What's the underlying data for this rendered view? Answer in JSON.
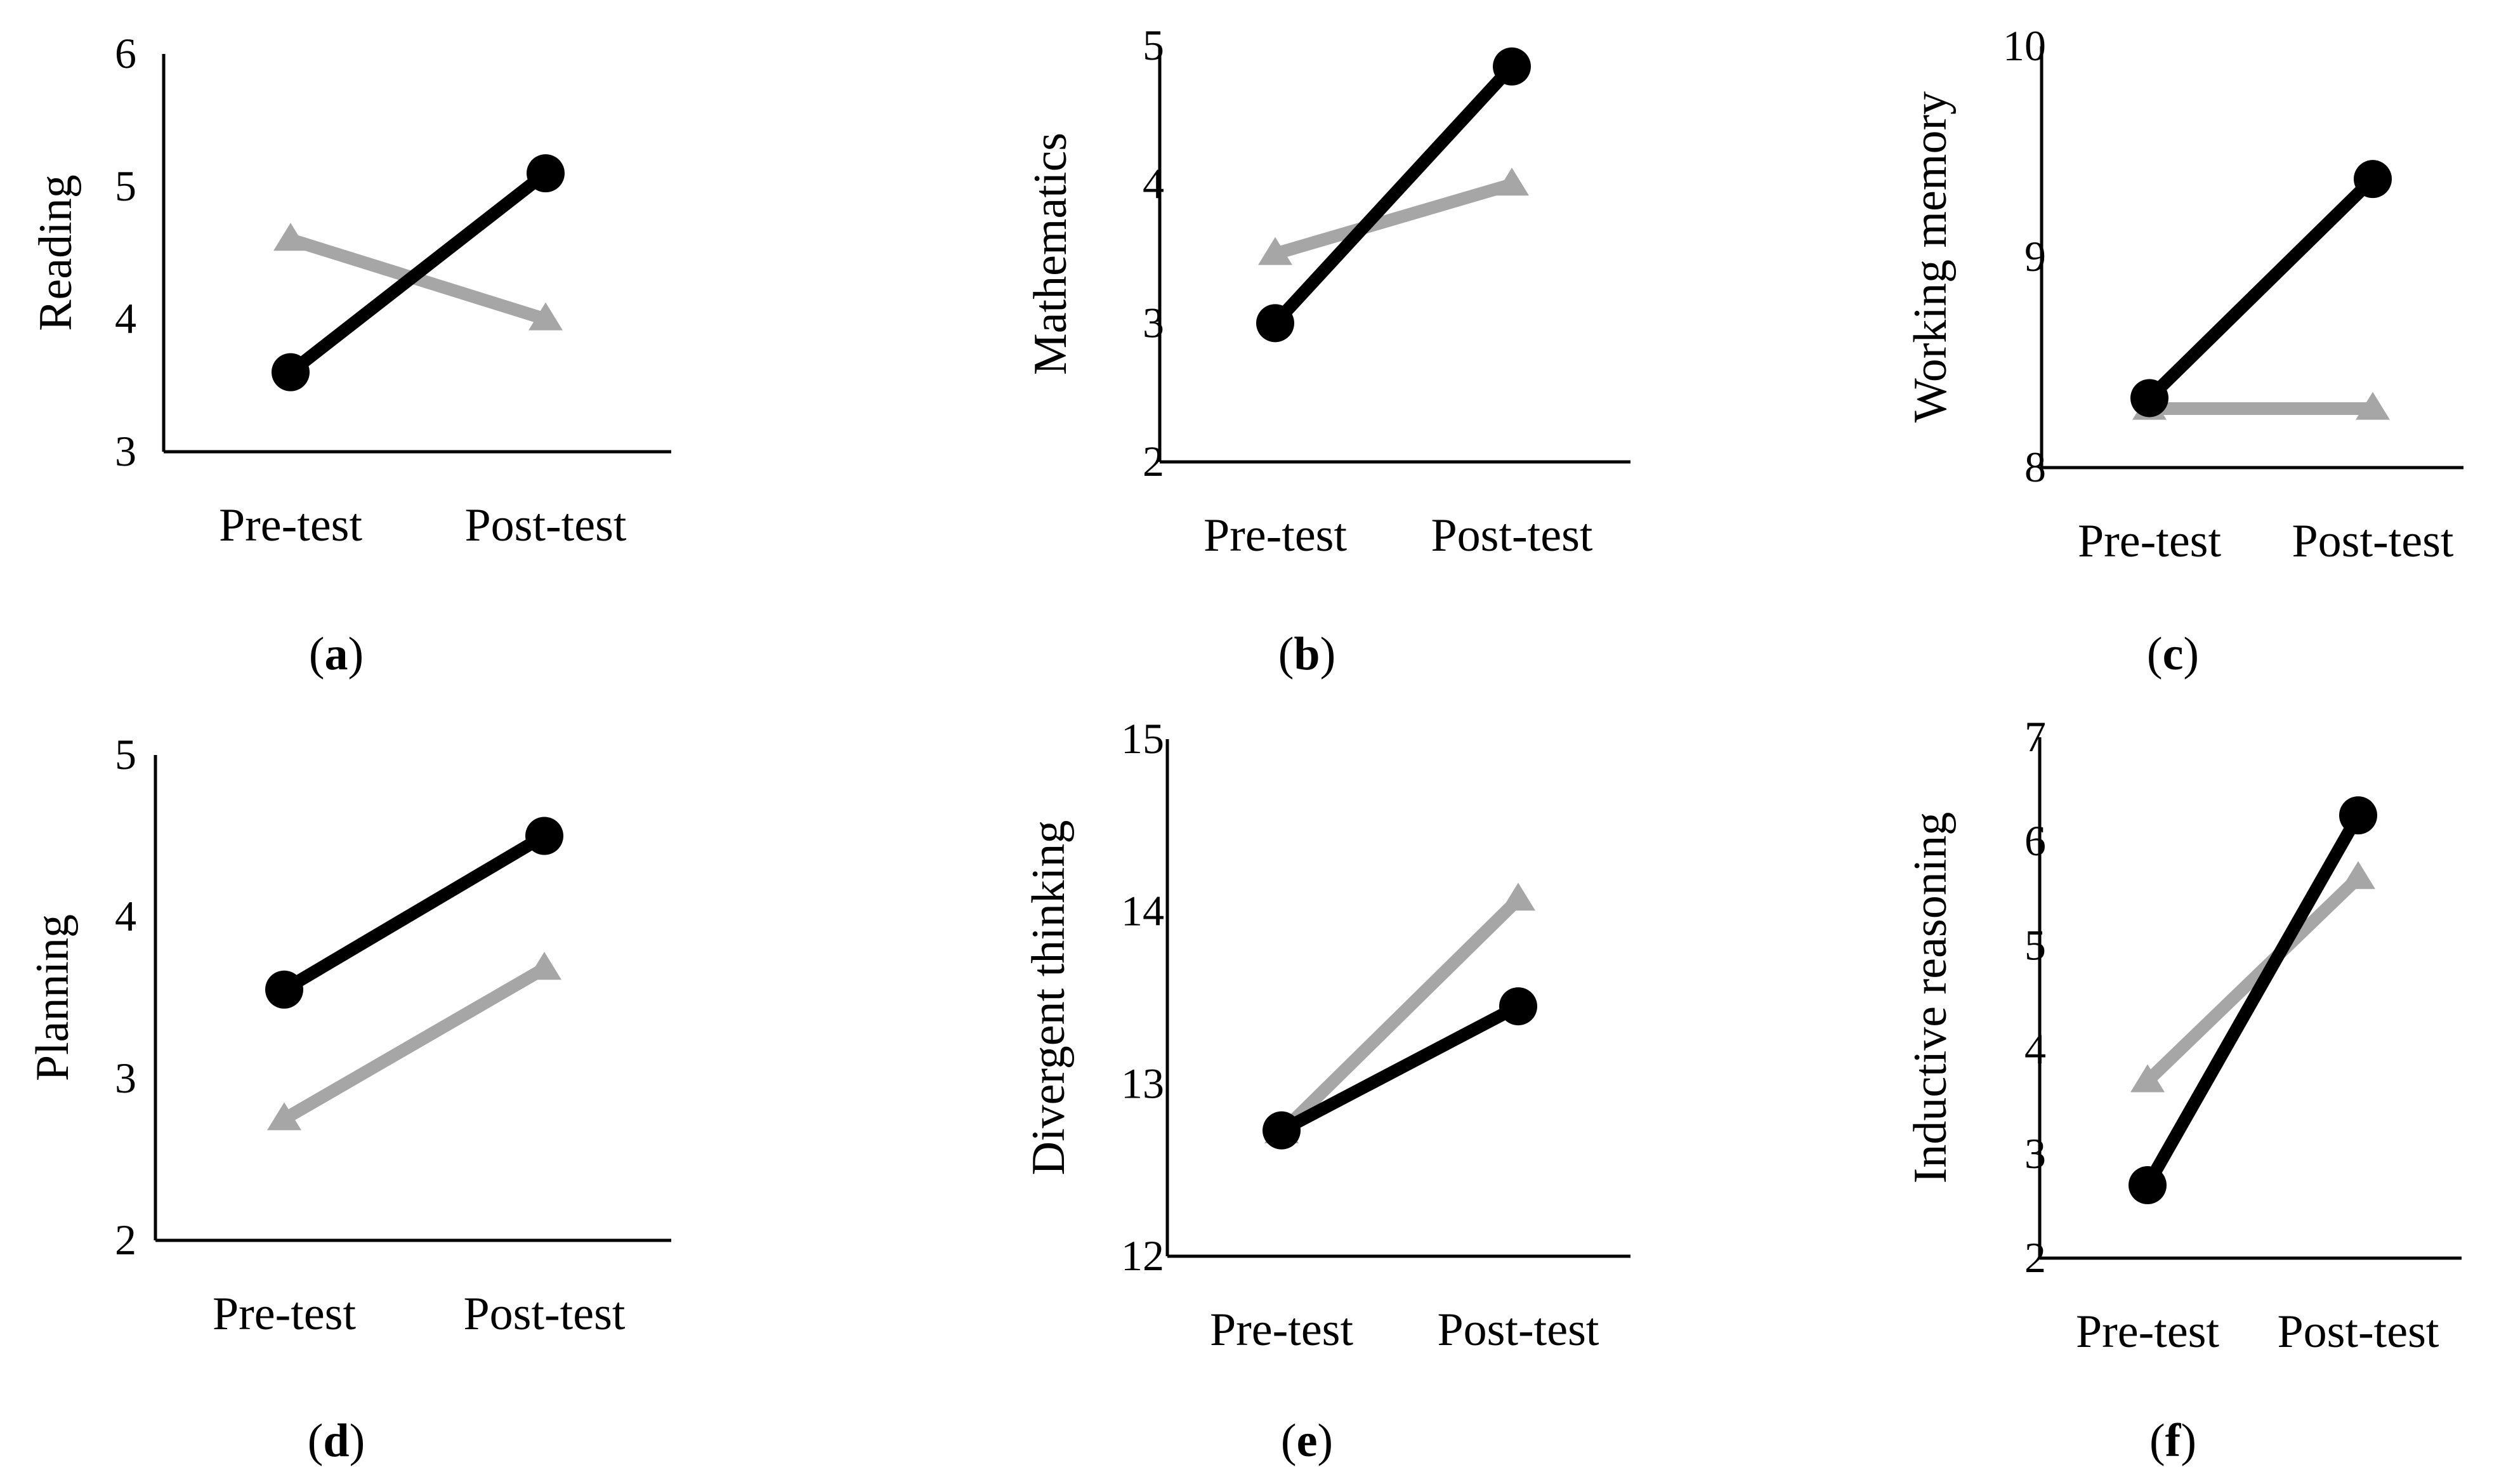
{
  "series_styles": {
    "circle_series": {
      "color": "#000000",
      "marker": "circle"
    },
    "triangle_series": {
      "color": "#a6a6a6",
      "marker": "triangle"
    }
  },
  "chart_data": [
    {
      "type": "line",
      "panel_label": "a",
      "categories": [
        "Pre-test",
        "Post-test"
      ],
      "ylabel": "Reading",
      "xlabel": "",
      "ylim": [
        3,
        6
      ],
      "yticks": [
        "3",
        "4",
        "5",
        "6"
      ],
      "series": [
        {
          "name": "circle_series",
          "values": [
            3.6,
            5.1
          ]
        },
        {
          "name": "triangle_series",
          "values": [
            4.6,
            4.0
          ]
        }
      ]
    },
    {
      "type": "line",
      "panel_label": "b",
      "categories": [
        "Pre-test",
        "Post-test"
      ],
      "ylabel": "Mathematics",
      "xlabel": "",
      "ylim": [
        2,
        5
      ],
      "yticks": [
        "2",
        "3",
        "4",
        "5"
      ],
      "series": [
        {
          "name": "circle_series",
          "values": [
            3.0,
            4.85
          ]
        },
        {
          "name": "triangle_series",
          "values": [
            3.5,
            4.0
          ]
        }
      ]
    },
    {
      "type": "line",
      "panel_label": "c",
      "categories": [
        "Pre-test",
        "Post-test"
      ],
      "ylabel": "Working memory",
      "xlabel": "",
      "ylim": [
        8,
        10
      ],
      "yticks": [
        "8",
        "9",
        "10"
      ],
      "series": [
        {
          "name": "circle_series",
          "values": [
            8.33,
            9.37
          ]
        },
        {
          "name": "triangle_series",
          "values": [
            8.28,
            8.28
          ]
        }
      ]
    },
    {
      "type": "line",
      "panel_label": "d",
      "categories": [
        "Pre-test",
        "Post-test"
      ],
      "ylabel": "Planning",
      "xlabel": "",
      "ylim": [
        2,
        5
      ],
      "yticks": [
        "2",
        "3",
        "4",
        "5"
      ],
      "series": [
        {
          "name": "circle_series",
          "values": [
            3.55,
            4.5
          ]
        },
        {
          "name": "triangle_series",
          "values": [
            2.75,
            3.68
          ]
        }
      ]
    },
    {
      "type": "line",
      "panel_label": "e",
      "categories": [
        "Pre-test",
        "Post-test"
      ],
      "ylabel": "Divergent thinking",
      "xlabel": "",
      "ylim": [
        12,
        15
      ],
      "yticks": [
        "12",
        "13",
        "14",
        "15"
      ],
      "series": [
        {
          "name": "circle_series",
          "values": [
            12.73,
            13.45
          ]
        },
        {
          "name": "triangle_series",
          "values": [
            12.72,
            14.07
          ]
        }
      ]
    },
    {
      "type": "line",
      "panel_label": "f",
      "categories": [
        "Pre-test",
        "Post-test"
      ],
      "ylabel": "Inductive reasoning",
      "xlabel": "",
      "ylim": [
        2,
        7
      ],
      "yticks": [
        "2",
        "3",
        "4",
        "5",
        "6",
        "7"
      ],
      "series": [
        {
          "name": "circle_series",
          "values": [
            2.7,
            6.25
          ]
        },
        {
          "name": "triangle_series",
          "values": [
            3.7,
            5.65
          ]
        }
      ]
    }
  ]
}
